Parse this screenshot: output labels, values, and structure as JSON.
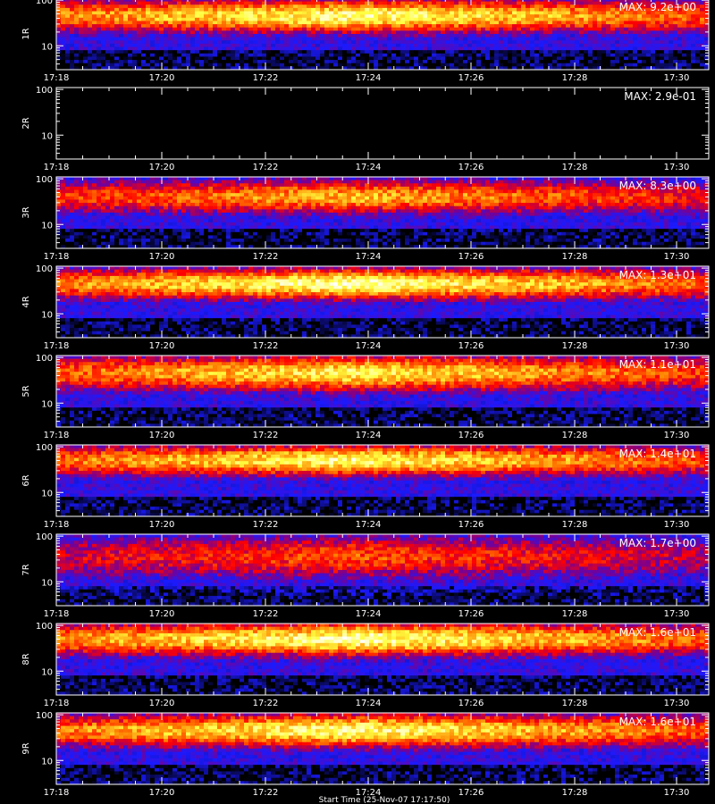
{
  "chart_data": [
    {
      "type": "heatmap",
      "ylabel": "1R",
      "max_label": "MAX: 9.2e+00",
      "max_value": 9.2,
      "x_ticks": [
        "17:18",
        "17:20",
        "17:22",
        "17:24",
        "17:26",
        "17:28",
        "17:30"
      ],
      "y_ticks": [
        "100",
        "10"
      ],
      "y_scale": "log",
      "band_peak": 0.9,
      "band_center": 45,
      "band_width": 0.75
    },
    {
      "type": "heatmap",
      "ylabel": "2R",
      "max_label": "MAX: 2.9e-01",
      "max_value": 0.29,
      "x_ticks": [
        "17:18",
        "17:20",
        "17:22",
        "17:24",
        "17:26",
        "17:28",
        "17:30"
      ],
      "y_ticks": [
        "100",
        "10"
      ],
      "y_scale": "log",
      "band_peak": 0.0,
      "band_center": 45,
      "band_width": 0.75
    },
    {
      "type": "heatmap",
      "ylabel": "3R",
      "max_label": "MAX: 8.3e+00",
      "max_value": 8.3,
      "x_ticks": [
        "17:18",
        "17:20",
        "17:22",
        "17:24",
        "17:26",
        "17:28",
        "17:30"
      ],
      "y_ticks": [
        "100",
        "10"
      ],
      "y_scale": "log",
      "band_peak": 0.75,
      "band_center": 40,
      "band_width": 0.75
    },
    {
      "type": "heatmap",
      "ylabel": "4R",
      "max_label": "MAX: 1.3e+01",
      "max_value": 13,
      "x_ticks": [
        "17:18",
        "17:20",
        "17:22",
        "17:24",
        "17:26",
        "17:28",
        "17:30"
      ],
      "y_ticks": [
        "100",
        "10"
      ],
      "y_scale": "log",
      "band_peak": 0.92,
      "band_center": 45,
      "band_width": 0.7
    },
    {
      "type": "heatmap",
      "ylabel": "5R",
      "max_label": "MAX: 1.1e+01",
      "max_value": 11,
      "x_ticks": [
        "17:18",
        "17:20",
        "17:22",
        "17:24",
        "17:26",
        "17:28",
        "17:30"
      ],
      "y_ticks": [
        "100",
        "10"
      ],
      "y_scale": "log",
      "band_peak": 0.85,
      "band_center": 45,
      "band_width": 0.8
    },
    {
      "type": "heatmap",
      "ylabel": "6R",
      "max_label": "MAX: 1.4e+01",
      "max_value": 14,
      "x_ticks": [
        "17:18",
        "17:20",
        "17:22",
        "17:24",
        "17:26",
        "17:28",
        "17:30"
      ],
      "y_ticks": [
        "100",
        "10"
      ],
      "y_scale": "log",
      "band_peak": 0.88,
      "band_center": 50,
      "band_width": 0.7
    },
    {
      "type": "heatmap",
      "ylabel": "7R",
      "max_label": "MAX: 1.7e+00",
      "max_value": 1.7,
      "x_ticks": [
        "17:18",
        "17:20",
        "17:22",
        "17:24",
        "17:26",
        "17:28",
        "17:30"
      ],
      "y_ticks": [
        "100",
        "10"
      ],
      "y_scale": "log",
      "band_peak": 0.6,
      "band_center": 35,
      "band_width": 1.0
    },
    {
      "type": "heatmap",
      "ylabel": "8R",
      "max_label": "MAX: 1.6e+01",
      "max_value": 16,
      "x_ticks": [
        "17:18",
        "17:20",
        "17:22",
        "17:24",
        "17:26",
        "17:28",
        "17:30"
      ],
      "y_ticks": [
        "100",
        "10"
      ],
      "y_scale": "log",
      "band_peak": 0.92,
      "band_center": 50,
      "band_width": 0.75
    },
    {
      "type": "heatmap",
      "ylabel": "9R",
      "max_label": "MAX: 1.6e+01",
      "max_value": 16,
      "x_ticks": [
        "17:18",
        "17:20",
        "17:22",
        "17:24",
        "17:26",
        "17:28",
        "17:30"
      ],
      "y_ticks": [
        "100",
        "10"
      ],
      "y_scale": "log",
      "band_peak": 0.9,
      "band_center": 45,
      "band_width": 0.75
    }
  ],
  "x_title": "Start Time (25-Nov-07 17:17:50)",
  "colors": {
    "background": "#000000",
    "axis": "#ffffff",
    "colormap": [
      "#000000",
      "#1a1aff",
      "#7a0090",
      "#ff0000",
      "#ff8000",
      "#ffff40",
      "#ffffff"
    ]
  }
}
